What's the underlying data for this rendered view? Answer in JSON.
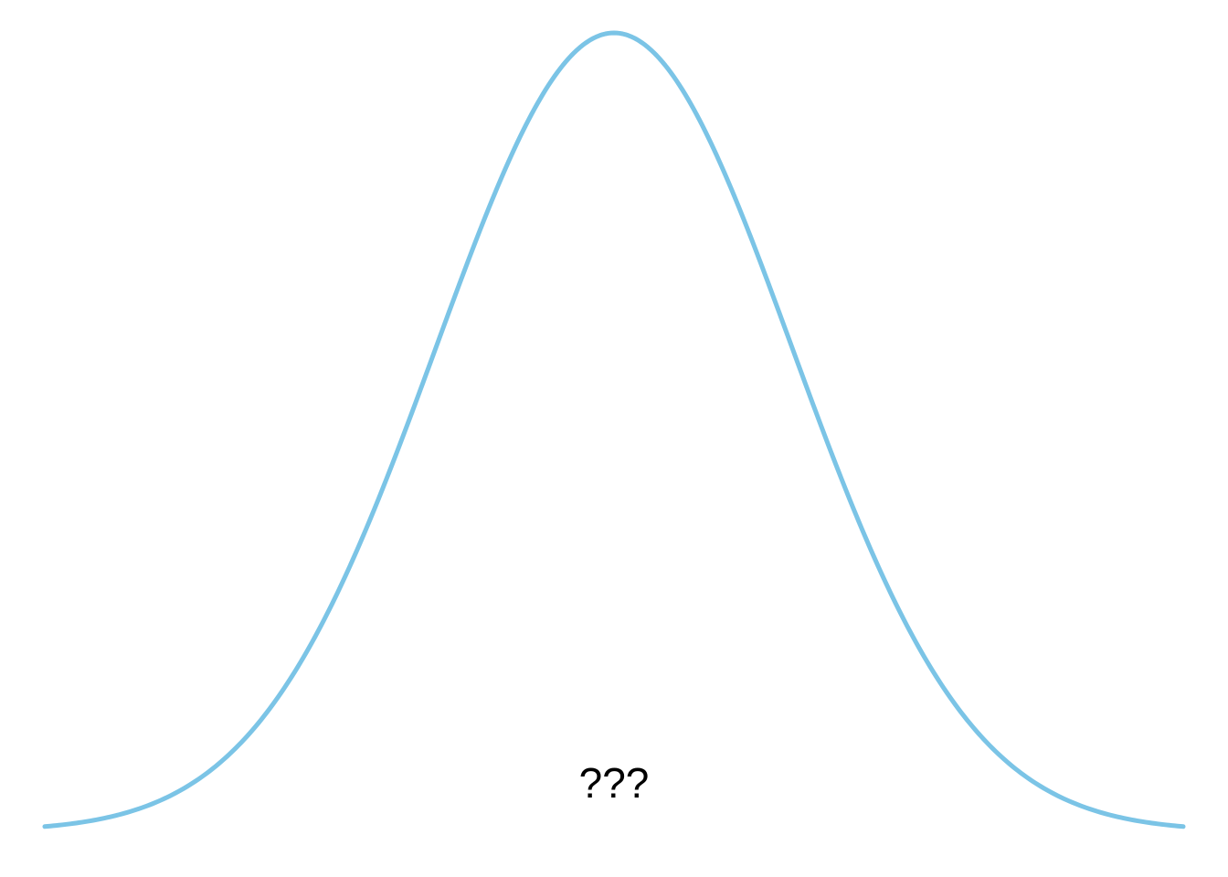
{
  "chart_data": {
    "type": "line",
    "title": "",
    "xlabel": "",
    "ylabel": "",
    "grid": false,
    "legend": "none",
    "axes_visible": false,
    "series": [
      {
        "distribution": "normal",
        "mean": 0,
        "sd": 1,
        "x_range": [
          -3.2,
          3.2
        ],
        "color": "#7bc4e6"
      }
    ],
    "ylim": [
      0,
      0.4
    ],
    "annotations": [
      {
        "text": "???"
      }
    ]
  }
}
